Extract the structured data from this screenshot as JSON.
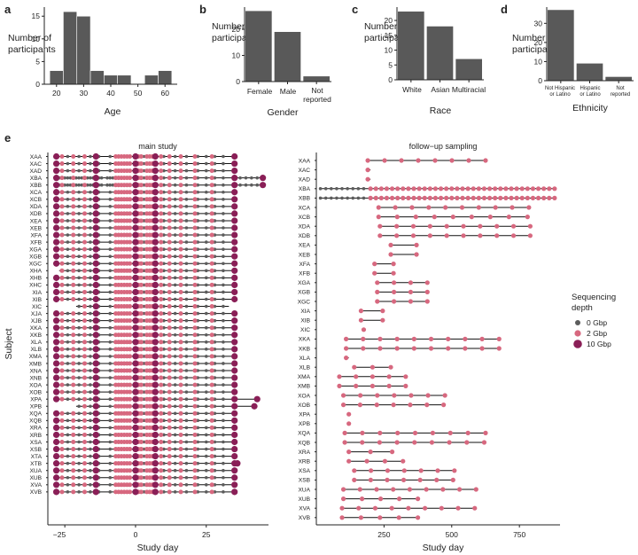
{
  "colors": {
    "bar": "#595959",
    "axis": "#222222",
    "depth_0": "#5c5c5c",
    "depth_2": "#d7687f",
    "depth_10": "#8a1f57"
  },
  "chart_data": [
    {
      "panel": "a",
      "type": "bar",
      "title": "",
      "xlabel": "Age",
      "ylabel": "Number of participants",
      "bin_edges": [
        17.5,
        22.5,
        27.5,
        32.5,
        37.5,
        42.5,
        47.5,
        52.5,
        57.5,
        62.5
      ],
      "values": [
        3,
        16,
        15,
        3,
        2,
        2,
        0,
        2,
        3
      ],
      "xlim": [
        15.5,
        64.5
      ],
      "ylim": [
        0,
        17
      ],
      "xticks": [
        "20",
        "30",
        "40",
        "50",
        "60"
      ],
      "xtick_values": [
        20,
        30,
        40,
        50,
        60
      ],
      "yticks": [
        "0",
        "5",
        "10",
        "15"
      ],
      "ytick_values": [
        0,
        5,
        10,
        15
      ]
    },
    {
      "panel": "b",
      "type": "bar",
      "xlabel": "Gender",
      "ylabel": "Number of participants",
      "categories": [
        "Female",
        "Male",
        "Not reported"
      ],
      "values": [
        27,
        19,
        2
      ],
      "ylim": [
        0,
        28.5
      ],
      "yticks": [
        "0",
        "10",
        "20"
      ],
      "ytick_values": [
        0,
        10,
        20
      ]
    },
    {
      "panel": "c",
      "type": "bar",
      "xlabel": "Race",
      "ylabel": "Number of participants",
      "categories": [
        "White",
        "Asian",
        "Multiracial"
      ],
      "values": [
        23,
        18,
        7
      ],
      "ylim": [
        0,
        24.5
      ],
      "yticks": [
        "0",
        "5",
        "10",
        "15",
        "20"
      ],
      "ytick_values": [
        0,
        5,
        10,
        15,
        20
      ]
    },
    {
      "panel": "d",
      "type": "bar",
      "xlabel": "Ethnicity",
      "ylabel": "Number of participants",
      "categories": [
        "Not Hispanic or Latino",
        "Hispanic or Latino",
        "Not reported"
      ],
      "values": [
        37,
        9,
        2
      ],
      "ylim": [
        0,
        38.5
      ],
      "yticks": [
        "0",
        "10",
        "20",
        "30"
      ],
      "ytick_values": [
        0,
        10,
        20,
        30
      ]
    },
    {
      "panel": "e",
      "type": "scatter",
      "title": "main study",
      "xlabel": "Study day",
      "ylabel": "Subject",
      "xlim": [
        -31,
        47
      ],
      "xticks": [
        "0",
        "25"
      ],
      "xtick_values": [
        0,
        25
      ],
      "xtick_neg_label": "−25",
      "xtick_neg_value": -25,
      "subjects": [
        "XAA",
        "XAC",
        "XAD",
        "XBA",
        "XBB",
        "XCA",
        "XCB",
        "XDA",
        "XDB",
        "XEA",
        "XEB",
        "XFA",
        "XFB",
        "XGA",
        "XGB",
        "XGC",
        "XHA",
        "XHB",
        "XHC",
        "XIA",
        "XIB",
        "XIC",
        "XJA",
        "XJB",
        "XKA",
        "XKB",
        "XLA",
        "XLB",
        "XMA",
        "XMB",
        "XNA",
        "XNB",
        "XOA",
        "XOB",
        "XPA",
        "XPB",
        "XQA",
        "XQB",
        "XRA",
        "XRB",
        "XSA",
        "XSB",
        "XTA",
        "XTB",
        "XUA",
        "XUB",
        "XVA",
        "XVB"
      ],
      "subject_ranges": [
        [
          -28,
          35
        ],
        [
          -28,
          35
        ],
        [
          -28,
          35
        ],
        [
          -29,
          45
        ],
        [
          -29,
          45
        ],
        [
          -28,
          35
        ],
        [
          -28,
          35
        ],
        [
          -28,
          35
        ],
        [
          -28,
          35
        ],
        [
          -28,
          35
        ],
        [
          -28,
          35
        ],
        [
          -28,
          35
        ],
        [
          -28,
          35
        ],
        [
          -28,
          35
        ],
        [
          -28,
          35
        ],
        [
          -28,
          35
        ],
        [
          -27,
          35
        ],
        [
          -28,
          35
        ],
        [
          -28,
          35
        ],
        [
          -28,
          35
        ],
        [
          -28,
          35
        ],
        [
          -21,
          33
        ],
        [
          -28,
          35
        ],
        [
          -28,
          35
        ],
        [
          -28,
          35
        ],
        [
          -28,
          35
        ],
        [
          -28,
          35
        ],
        [
          -28,
          35
        ],
        [
          -28,
          35
        ],
        [
          -28,
          35
        ],
        [
          -28,
          35
        ],
        [
          -28,
          35
        ],
        [
          -28,
          35
        ],
        [
          -28,
          35
        ],
        [
          -28,
          43
        ],
        [
          -21,
          42
        ],
        [
          -28,
          35
        ],
        [
          -28,
          35
        ],
        [
          -28,
          35
        ],
        [
          -28,
          35
        ],
        [
          -28,
          35
        ],
        [
          -28,
          35
        ],
        [
          -28,
          35
        ],
        [
          -28,
          36
        ],
        [
          -28,
          35
        ],
        [
          -28,
          35
        ],
        [
          -28,
          35
        ],
        [
          -28,
          35
        ]
      ],
      "series": [
        {
          "name": "0 Gbp",
          "days": [
            -24,
            -20,
            -16,
            -13,
            -9,
            -5,
            -3,
            3,
            5,
            10,
            14,
            18,
            22,
            25,
            28,
            31
          ]
        },
        {
          "name": "2 Gbp",
          "days": [
            -26,
            -22,
            -18,
            -14,
            -7,
            -6,
            -5,
            -4,
            -3,
            -2,
            1,
            2,
            4,
            5,
            6,
            9,
            12,
            16,
            21,
            27
          ]
        },
        {
          "name": "10 Gbp",
          "days": [
            -28,
            -14,
            0,
            7,
            35
          ]
        }
      ]
    },
    {
      "panel": "e",
      "type": "scatter",
      "title": "follow−up sampling",
      "xlabel": "Study day",
      "xlim": [
        0,
        900
      ],
      "xticks": [
        "250",
        "500",
        "750"
      ],
      "xtick_values": [
        250,
        500,
        750
      ],
      "subjects": [
        "XAA",
        "XAC",
        "XAD",
        "XBA",
        "XBB",
        "XCA",
        "XCB",
        "XDA",
        "XDB",
        "XEA",
        "XEB",
        "XFA",
        "XFB",
        "XGA",
        "XGB",
        "XGC",
        "XIA",
        "XIB",
        "XIC",
        "XKA",
        "XKB",
        "XLA",
        "XLB",
        "XMA",
        "XMB",
        "XOA",
        "XOB",
        "XPA",
        "XPB",
        "XQA",
        "XQB",
        "XRA",
        "XRB",
        "XSA",
        "XSB",
        "XUA",
        "XUB",
        "XVA",
        "XVB"
      ],
      "subject_ranges": [
        [
          190,
          625
        ],
        [
          190,
          200
        ],
        [
          190,
          200
        ],
        [
          15,
          885
        ],
        [
          15,
          880
        ],
        [
          230,
          785
        ],
        [
          230,
          780
        ],
        [
          235,
          790
        ],
        [
          235,
          790
        ],
        [
          275,
          370
        ],
        [
          275,
          370
        ],
        [
          215,
          285
        ],
        [
          215,
          285
        ],
        [
          225,
          410
        ],
        [
          225,
          410
        ],
        [
          225,
          410
        ],
        [
          165,
          245
        ],
        [
          165,
          245
        ],
        [
          175,
          180
        ],
        [
          110,
          675
        ],
        [
          110,
          675
        ],
        [
          110,
          120
        ],
        [
          140,
          275
        ],
        [
          85,
          330
        ],
        [
          85,
          330
        ],
        [
          100,
          475
        ],
        [
          100,
          470
        ],
        [
          120,
          125
        ],
        [
          120,
          125
        ],
        [
          105,
          625
        ],
        [
          105,
          620
        ],
        [
          120,
          280
        ],
        [
          120,
          320
        ],
        [
          140,
          510
        ],
        [
          140,
          505
        ],
        [
          100,
          590
        ],
        [
          100,
          375
        ],
        [
          95,
          585
        ],
        [
          95,
          375
        ]
      ],
      "series": [
        {
          "name": "0 Gbp",
          "days": [
            15,
            35,
            55,
            75,
            95,
            115,
            135,
            155,
            175
          ]
        },
        {
          "name": "2 Gbp",
          "days": []
        },
        {
          "name": "10 Gbp",
          "days": []
        }
      ]
    }
  ],
  "labels": {
    "a": "a",
    "b": "b",
    "c": "c",
    "d": "d",
    "e": "e"
  },
  "legend": {
    "title_line1": "Sequencing",
    "title_line2": "depth",
    "items": [
      "0 Gbp",
      "2 Gbp",
      "10 Gbp"
    ]
  },
  "ylabel_parts": {
    "line1": "Number of",
    "line2": "participants"
  },
  "tick_text": {
    "female": "Female",
    "male": "Male",
    "not_reported_1": "Not",
    "not_reported_2": "reported",
    "white": "White",
    "asian": "Asian",
    "multiracial": "Multiracial",
    "nhl_1": "Not Hispanic",
    "nhl_2": "or Latino",
    "hl_1": "Hispanic",
    "hl_2": "or Latino",
    "nr_1": "Not",
    "nr_2": "reported"
  }
}
